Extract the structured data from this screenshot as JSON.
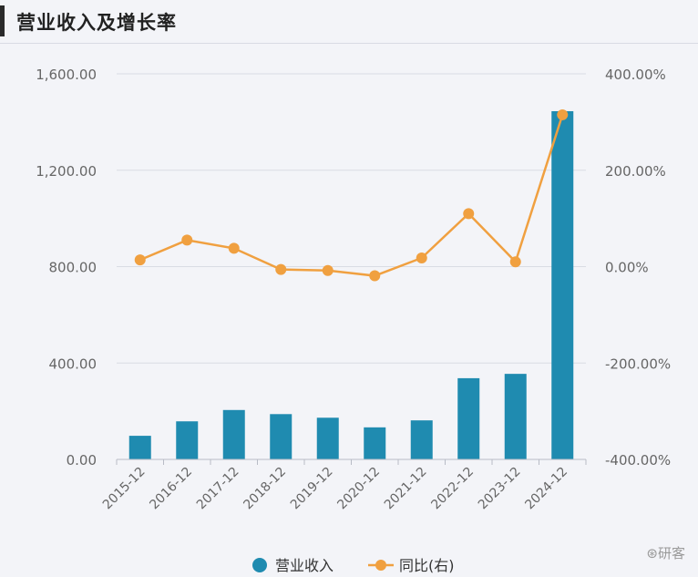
{
  "header": {
    "title": "营业收入及增长率"
  },
  "watermark": "研客",
  "colors": {
    "bar": "#1f8bb0",
    "line": "#f0a040",
    "grid": "#d9dce3",
    "axis_text": "#666666"
  },
  "chart_data": {
    "type": "bar",
    "categories": [
      "2015-12",
      "2016-12",
      "2017-12",
      "2018-12",
      "2019-12",
      "2020-12",
      "2021-12",
      "2022-12",
      "2023-12",
      "2024-12"
    ],
    "series": [
      {
        "name": "营业收入",
        "type": "bar",
        "axis": "left",
        "values": [
          98,
          158,
          205,
          188,
          173,
          133,
          162,
          337,
          355,
          1445
        ]
      },
      {
        "name": "同比(右)",
        "type": "line",
        "axis": "right",
        "values": [
          14,
          55,
          38,
          -6,
          -8,
          -19,
          18,
          110,
          10,
          315
        ]
      }
    ],
    "left_axis": {
      "min": 0,
      "max": 1600,
      "ticks": [
        "0.00",
        "400.00",
        "800.00",
        "1,200.00",
        "1,600.00"
      ]
    },
    "right_axis": {
      "min": -400,
      "max": 400,
      "ticks": [
        "-400.00%",
        "-200.00%",
        "0.00%",
        "200.00%",
        "400.00%"
      ]
    },
    "legend_position": "bottom",
    "grid": true
  }
}
